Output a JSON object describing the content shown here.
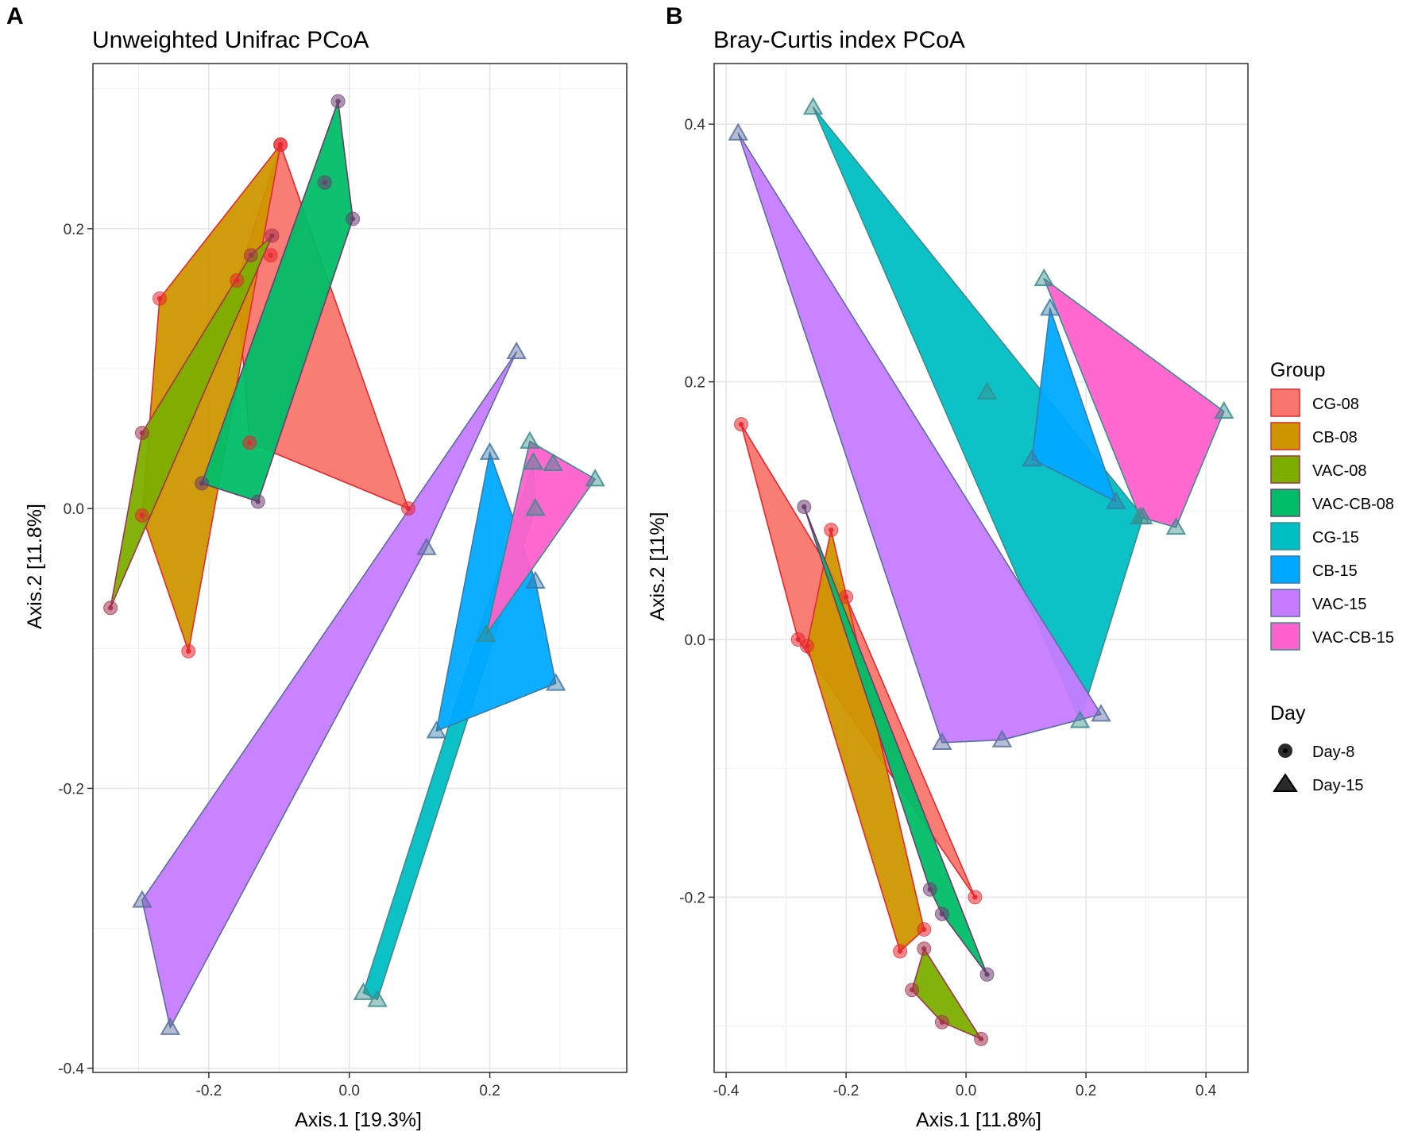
{
  "chart_data": [
    {
      "panel": "A",
      "type": "scatter",
      "title": "Unweighted Unifrac PCoA",
      "xlabel": "Axis.1   [19.3%]",
      "ylabel": "Axis.2   [11.8%]",
      "xlim": [
        -0.365,
        0.395
      ],
      "ylim": [
        -0.403,
        0.318
      ],
      "xticks": [
        -0.2,
        0.0,
        0.2
      ],
      "xtick_labels": [
        "-0.2",
        "0.0",
        "0.2"
      ],
      "yticks": [
        -0.4,
        -0.2,
        0.0,
        0.2
      ],
      "ytick_labels": [
        "-0.4",
        "-0.2",
        "0.0",
        "0.2"
      ],
      "grid": true,
      "groups": [
        {
          "name": "CG-08",
          "day": "Day-8",
          "points": [
            [
              -0.098,
              0.26
            ],
            [
              -0.112,
              0.181
            ],
            [
              -0.16,
              0.163
            ],
            [
              -0.142,
              0.047
            ],
            [
              0.084,
              0.0
            ]
          ]
        },
        {
          "name": "CB-08",
          "day": "Day-8",
          "points": [
            [
              -0.098,
              0.26
            ],
            [
              -0.27,
              0.15
            ],
            [
              -0.295,
              -0.005
            ],
            [
              -0.229,
              -0.102
            ]
          ]
        },
        {
          "name": "VAC-08",
          "day": "Day-8",
          "points": [
            [
              -0.14,
              0.181
            ],
            [
              -0.295,
              0.054
            ],
            [
              -0.34,
              -0.071
            ],
            [
              -0.11,
              0.195
            ]
          ]
        },
        {
          "name": "VAC-CB-08",
          "day": "Day-8",
          "points": [
            [
              -0.016,
              0.291
            ],
            [
              -0.035,
              0.233
            ],
            [
              0.005,
              0.207
            ],
            [
              -0.21,
              0.018
            ],
            [
              -0.13,
              0.005
            ]
          ]
        },
        {
          "name": "CG-15",
          "day": "Day-15",
          "points": [
            [
              0.262,
              0.033
            ],
            [
              0.265,
              0.0
            ],
            [
              0.02,
              -0.346
            ],
            [
              0.04,
              -0.351
            ]
          ]
        },
        {
          "name": "CB-15",
          "day": "Day-15",
          "points": [
            [
              0.2,
              0.04
            ],
            [
              0.265,
              -0.052
            ],
            [
              0.294,
              -0.125
            ],
            [
              0.124,
              -0.159
            ]
          ]
        },
        {
          "name": "VAC-15",
          "day": "Day-15",
          "points": [
            [
              0.238,
              0.112
            ],
            [
              0.11,
              -0.028
            ],
            [
              -0.295,
              -0.28
            ],
            [
              -0.255,
              -0.371
            ]
          ]
        },
        {
          "name": "VAC-CB-15",
          "day": "Day-15",
          "points": [
            [
              0.257,
              0.048
            ],
            [
              0.29,
              0.032
            ],
            [
              0.35,
              0.021
            ],
            [
              0.195,
              -0.09
            ]
          ]
        }
      ]
    },
    {
      "panel": "B",
      "type": "scatter",
      "title": "Bray-Curtis index PCoA",
      "xlabel": "Axis.1   [11.8%]",
      "ylabel": "Axis.2   [11%]",
      "xlim": [
        -0.42,
        0.47
      ],
      "ylim": [
        -0.336,
        0.447
      ],
      "xticks": [
        -0.4,
        -0.2,
        0.0,
        0.2,
        0.4
      ],
      "xtick_labels": [
        "-0.4",
        "-0.2",
        "0.0",
        "0.2",
        "0.4"
      ],
      "yticks": [
        -0.2,
        0.0,
        0.2,
        0.4
      ],
      "ytick_labels": [
        "-0.2",
        "0.0",
        "0.2",
        "0.4"
      ],
      "grid": true,
      "groups": [
        {
          "name": "CG-08",
          "day": "Day-8",
          "points": [
            [
              -0.375,
              0.167
            ],
            [
              -0.28,
              0.0
            ],
            [
              -0.2,
              0.033
            ],
            [
              0.015,
              -0.2
            ]
          ]
        },
        {
          "name": "CB-08",
          "day": "Day-8",
          "points": [
            [
              -0.225,
              0.085
            ],
            [
              -0.11,
              -0.242
            ],
            [
              -0.07,
              -0.225
            ],
            [
              -0.265,
              -0.005
            ]
          ]
        },
        {
          "name": "VAC-08",
          "day": "Day-8",
          "points": [
            [
              -0.07,
              -0.24
            ],
            [
              -0.09,
              -0.272
            ],
            [
              -0.04,
              -0.297
            ],
            [
              0.025,
              -0.31
            ]
          ]
        },
        {
          "name": "VAC-CB-08",
          "day": "Day-8",
          "points": [
            [
              -0.27,
              0.103
            ],
            [
              -0.06,
              -0.194
            ],
            [
              -0.04,
              -0.213
            ],
            [
              0.035,
              -0.26
            ]
          ]
        },
        {
          "name": "CG-15",
          "day": "Day-15",
          "points": [
            [
              -0.255,
              0.413
            ],
            [
              0.035,
              0.192
            ],
            [
              0.295,
              0.095
            ],
            [
              0.19,
              -0.063
            ]
          ]
        },
        {
          "name": "CB-15",
          "day": "Day-15",
          "points": [
            [
              0.14,
              0.257
            ],
            [
              0.25,
              0.107
            ],
            [
              0.11,
              0.14
            ]
          ]
        },
        {
          "name": "VAC-15",
          "day": "Day-15",
          "points": [
            [
              -0.38,
              0.393
            ],
            [
              0.225,
              -0.058
            ],
            [
              0.06,
              -0.078
            ],
            [
              -0.04,
              -0.08
            ]
          ]
        },
        {
          "name": "VAC-CB-15",
          "day": "Day-15",
          "points": [
            [
              0.13,
              0.28
            ],
            [
              0.29,
              0.095
            ],
            [
              0.35,
              0.087
            ],
            [
              0.43,
              0.177
            ]
          ]
        }
      ]
    }
  ],
  "legend": {
    "group_title": "Group",
    "groups": [
      {
        "name": "CG-08",
        "color": "#F8766D",
        "border": "#E8262E"
      },
      {
        "name": "CB-08",
        "color": "#CD9600",
        "border": "#E8262E"
      },
      {
        "name": "VAC-08",
        "color": "#7CAE00",
        "border": "#A3324A"
      },
      {
        "name": "VAC-CB-08",
        "color": "#00BE67",
        "border": "#6A3D70"
      },
      {
        "name": "CG-15",
        "color": "#00BFC4",
        "border": "#3A8C8C"
      },
      {
        "name": "CB-15",
        "color": "#00A9FF",
        "border": "#3A7AA8"
      },
      {
        "name": "VAC-15",
        "color": "#C77CFF",
        "border": "#5A6DA0"
      },
      {
        "name": "VAC-CB-15",
        "color": "#FF61CC",
        "border": "#3A8C8C"
      }
    ],
    "day_title": "Day",
    "days": [
      {
        "name": "Day-8",
        "shape": "circle"
      },
      {
        "name": "Day-15",
        "shape": "triangle"
      }
    ]
  }
}
